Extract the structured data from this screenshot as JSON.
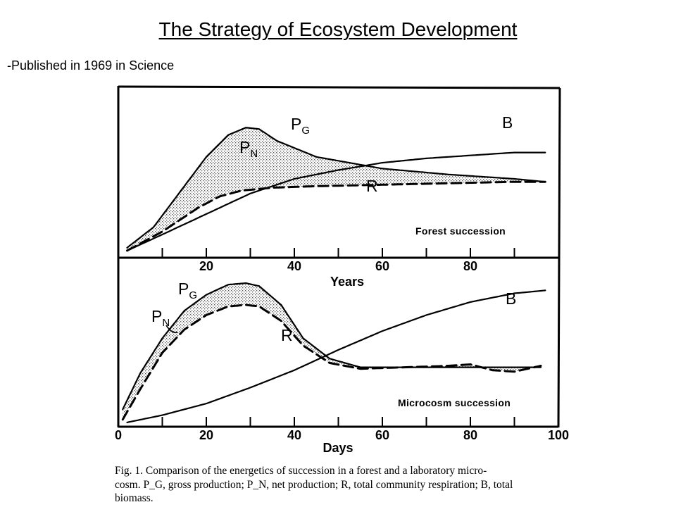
{
  "slide": {
    "title": "The Strategy of Ecosystem Development",
    "note": "-Published in 1969 in Science"
  },
  "figure": {
    "caption_lines": [
      "Fig. 1. Comparison of the energetics of succession in a forest and a laboratory micro-",
      "cosm. P_G, gross production; P_N, net production; R, total community respiration; B, total",
      "biomass."
    ]
  },
  "chart_data": [
    {
      "type": "line",
      "panel_label": "Forest succession",
      "xlabel": "Years",
      "x_ticks": [
        20,
        40,
        60,
        80
      ],
      "xlim": [
        0,
        100
      ],
      "ylim": [
        0,
        1
      ],
      "y_axis_labels": "none",
      "fill_between": {
        "upper": "P_G",
        "lower": "R",
        "style": "stippled",
        "label": "P_N"
      },
      "series": [
        {
          "name": "P_G",
          "style": "solid",
          "label_pos": "top",
          "x": [
            2,
            8,
            15,
            20,
            25,
            29,
            32,
            36,
            45,
            60,
            75,
            90,
            97
          ],
          "y": [
            0.03,
            0.17,
            0.45,
            0.65,
            0.8,
            0.85,
            0.84,
            0.76,
            0.65,
            0.57,
            0.53,
            0.5,
            0.48
          ]
        },
        {
          "name": "R",
          "style": "dashed",
          "x": [
            2,
            10,
            18,
            23,
            28,
            35,
            45,
            60,
            75,
            90,
            97
          ],
          "y": [
            0.01,
            0.14,
            0.3,
            0.38,
            0.42,
            0.44,
            0.45,
            0.46,
            0.47,
            0.48,
            0.48
          ]
        },
        {
          "name": "B",
          "style": "solid",
          "x": [
            2,
            10,
            20,
            30,
            40,
            50,
            60,
            70,
            80,
            90,
            97
          ],
          "y": [
            0.01,
            0.12,
            0.26,
            0.4,
            0.5,
            0.56,
            0.61,
            0.64,
            0.66,
            0.68,
            0.68
          ]
        }
      ]
    },
    {
      "type": "line",
      "panel_label": "Microcosm succession",
      "xlabel": "Days",
      "x_ticks": [
        0,
        20,
        40,
        60,
        80,
        100
      ],
      "xlim": [
        0,
        100
      ],
      "ylim": [
        0,
        1
      ],
      "y_axis_labels": "none",
      "fill_between": {
        "upper": "P_G",
        "lower": "R",
        "style": "stippled",
        "label": "P_N"
      },
      "series": [
        {
          "name": "P_G",
          "style": "solid",
          "x": [
            1,
            5,
            10,
            15,
            20,
            25,
            29,
            32,
            37,
            42,
            48,
            55,
            65,
            75,
            85,
            96
          ],
          "y": [
            0.11,
            0.36,
            0.6,
            0.79,
            0.9,
            0.97,
            0.98,
            0.96,
            0.83,
            0.6,
            0.46,
            0.4,
            0.4,
            0.4,
            0.4,
            0.4
          ]
        },
        {
          "name": "R",
          "style": "dashed",
          "x": [
            1,
            5,
            10,
            15,
            20,
            25,
            29,
            32,
            37,
            42,
            48,
            55,
            65,
            75,
            80,
            85,
            90,
            96
          ],
          "y": [
            0.04,
            0.25,
            0.5,
            0.66,
            0.76,
            0.82,
            0.83,
            0.82,
            0.72,
            0.55,
            0.43,
            0.39,
            0.4,
            0.41,
            0.42,
            0.38,
            0.37,
            0.41
          ]
        },
        {
          "name": "B",
          "style": "solid",
          "x": [
            2,
            10,
            20,
            30,
            40,
            50,
            60,
            70,
            80,
            90,
            97
          ],
          "y": [
            0.02,
            0.07,
            0.15,
            0.26,
            0.38,
            0.52,
            0.65,
            0.76,
            0.85,
            0.91,
            0.93
          ]
        }
      ]
    }
  ]
}
